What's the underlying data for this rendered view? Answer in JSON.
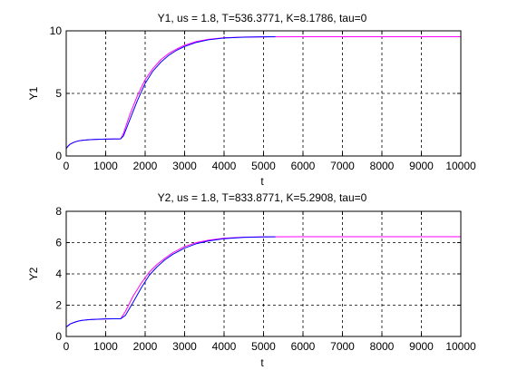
{
  "chart_data": [
    {
      "type": "line",
      "title": "Y1, us = 1.8, T=536.3771, K=8.1786, tau=0",
      "xlabel": "t",
      "ylabel": "Y1",
      "xlim": [
        0,
        10000
      ],
      "ylim": [
        0,
        10
      ],
      "xticks": [
        0,
        1000,
        2000,
        3000,
        4000,
        5000,
        6000,
        7000,
        8000,
        9000,
        10000
      ],
      "yticks": [
        0,
        5,
        10
      ],
      "xtick_labels": [
        "0",
        "1000",
        "2000",
        "3000",
        "4000",
        "5000",
        "6000",
        "7000",
        "8000",
        "9000",
        "10000"
      ],
      "ytick_labels": [
        "0",
        "5",
        "10"
      ],
      "grid": true,
      "series": [
        {
          "color": "#ff00ff",
          "x": [
            0,
            50,
            100,
            200,
            300,
            400,
            600,
            800,
            1000,
            1200,
            1380,
            1450,
            1600,
            1800,
            2000,
            2200,
            2400,
            2600,
            2800,
            3000,
            3300,
            3600,
            4000,
            4500,
            5000,
            6000,
            8000,
            10000
          ],
          "y": [
            0.6,
            0.8,
            0.95,
            1.1,
            1.2,
            1.25,
            1.3,
            1.33,
            1.35,
            1.36,
            1.37,
            1.8,
            3.2,
            4.8,
            6.1,
            7.0,
            7.7,
            8.2,
            8.55,
            8.85,
            9.15,
            9.32,
            9.45,
            9.5,
            9.52,
            9.53,
            9.53,
            9.53
          ]
        },
        {
          "color": "#0000ff",
          "x": [
            0,
            50,
            100,
            200,
            300,
            400,
            600,
            800,
            1000,
            1200,
            1380,
            1450,
            1600,
            1800,
            2000,
            2200,
            2400,
            2600,
            2800,
            3000,
            3300,
            3600,
            4000,
            4500,
            5000,
            5300
          ],
          "y": [
            0.6,
            0.8,
            0.95,
            1.1,
            1.2,
            1.25,
            1.3,
            1.33,
            1.35,
            1.36,
            1.37,
            1.6,
            2.8,
            4.4,
            5.8,
            6.8,
            7.5,
            8.05,
            8.45,
            8.75,
            9.08,
            9.28,
            9.43,
            9.49,
            9.52,
            9.53
          ]
        }
      ]
    },
    {
      "type": "line",
      "title": "Y2, us = 1.8, T=833.8771, K=5.2908, tau=0",
      "xlabel": "t",
      "ylabel": "Y2",
      "xlim": [
        0,
        10000
      ],
      "ylim": [
        0,
        8
      ],
      "xticks": [
        0,
        1000,
        2000,
        3000,
        4000,
        5000,
        6000,
        7000,
        8000,
        9000,
        10000
      ],
      "yticks": [
        0,
        2,
        4,
        6,
        8
      ],
      "xtick_labels": [
        "0",
        "1000",
        "2000",
        "3000",
        "4000",
        "5000",
        "6000",
        "7000",
        "8000",
        "9000",
        "10000"
      ],
      "ytick_labels": [
        "0",
        "2",
        "4",
        "6",
        "8"
      ],
      "grid": true,
      "series": [
        {
          "color": "#ff00ff",
          "x": [
            0,
            50,
            100,
            200,
            300,
            400,
            600,
            800,
            1000,
            1200,
            1380,
            1500,
            1700,
            1900,
            2100,
            2300,
            2500,
            2700,
            3000,
            3300,
            3600,
            4000,
            4500,
            5000,
            6000,
            8000,
            10000
          ],
          "y": [
            0.6,
            0.7,
            0.8,
            0.9,
            0.98,
            1.03,
            1.08,
            1.1,
            1.12,
            1.13,
            1.13,
            1.6,
            2.6,
            3.4,
            4.1,
            4.6,
            5.0,
            5.35,
            5.75,
            6.0,
            6.15,
            6.28,
            6.35,
            6.37,
            6.38,
            6.38,
            6.38
          ]
        },
        {
          "color": "#0000ff",
          "x": [
            0,
            50,
            100,
            200,
            300,
            400,
            600,
            800,
            1000,
            1200,
            1380,
            1500,
            1700,
            1900,
            2100,
            2300,
            2500,
            2700,
            3000,
            3300,
            3600,
            4000,
            4500,
            5000,
            5300
          ],
          "y": [
            0.6,
            0.7,
            0.8,
            0.9,
            0.98,
            1.03,
            1.08,
            1.1,
            1.12,
            1.13,
            1.13,
            1.35,
            2.2,
            3.1,
            3.9,
            4.45,
            4.9,
            5.25,
            5.65,
            5.93,
            6.1,
            6.25,
            6.33,
            6.36,
            6.37
          ]
        }
      ]
    }
  ]
}
